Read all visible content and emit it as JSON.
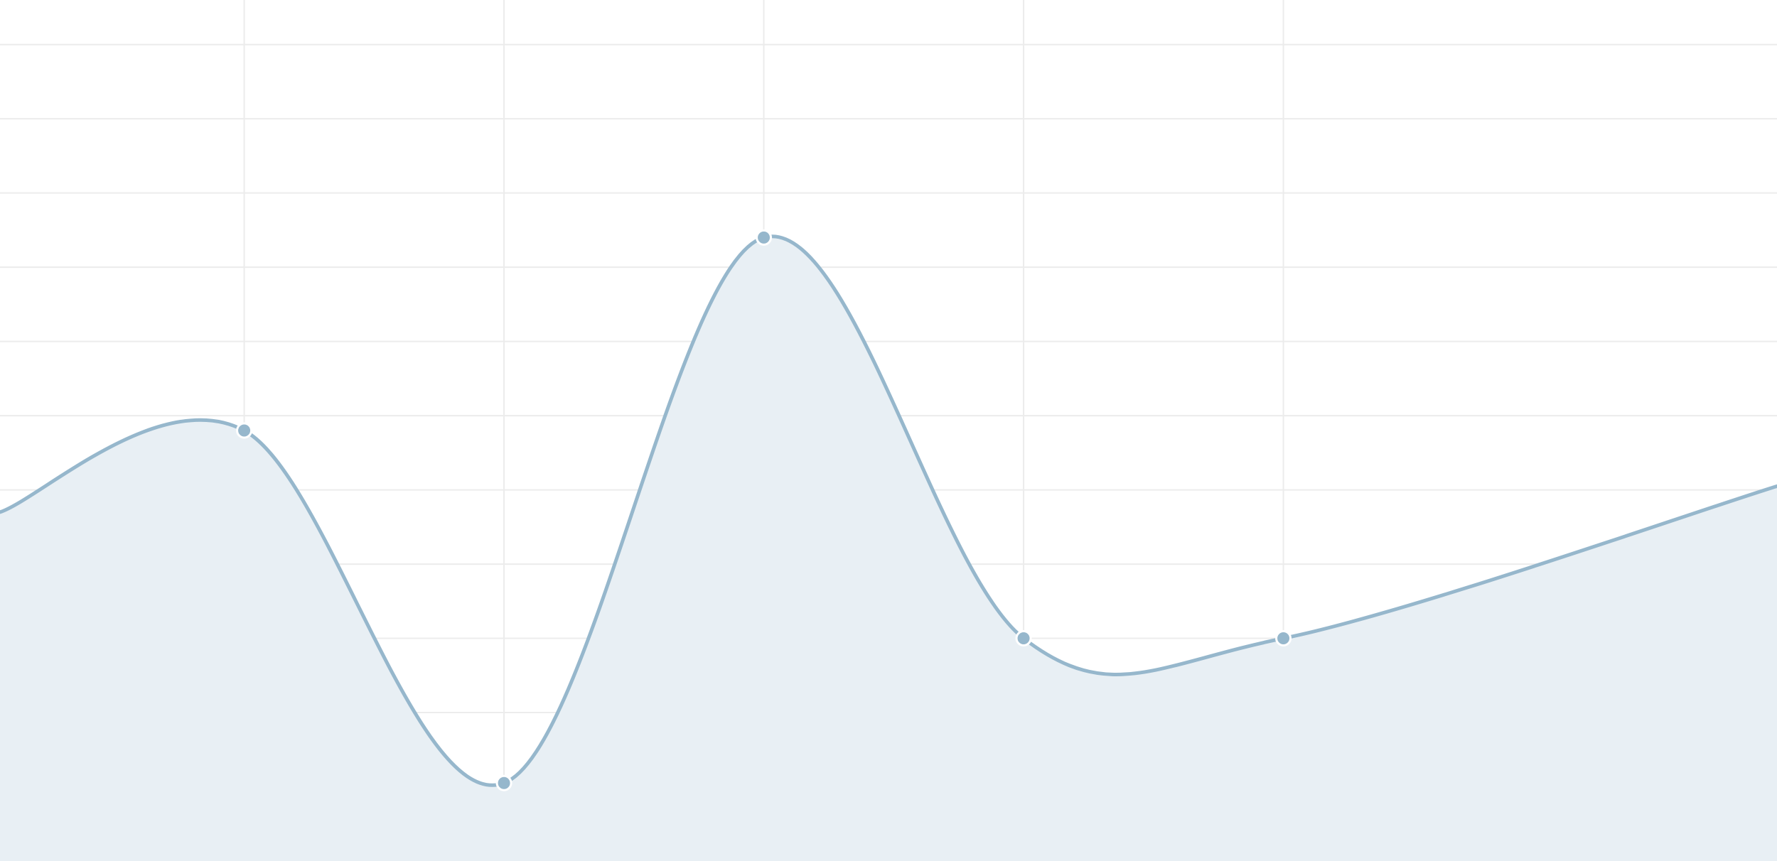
{
  "colors": {
    "background": "#ffffff",
    "grid": "#ececec",
    "series_line": "#96b7cc",
    "series_fill": "#e8eff4",
    "marker_stroke": "#ffffff"
  },
  "chart_data": {
    "type": "area",
    "title": "",
    "xlabel": "",
    "ylabel": "",
    "grid": true,
    "smooth": true,
    "x": [
      1,
      2,
      3,
      4,
      5
    ],
    "xlim": [
      0.06,
      6.9
    ],
    "ylim": [
      0,
      11.6
    ],
    "series": [
      {
        "values": [
          5.8,
          1.05,
          8.4,
          3.0,
          3.0
        ],
        "edge_left": 4.7,
        "edge_right": 5.05
      }
    ]
  }
}
